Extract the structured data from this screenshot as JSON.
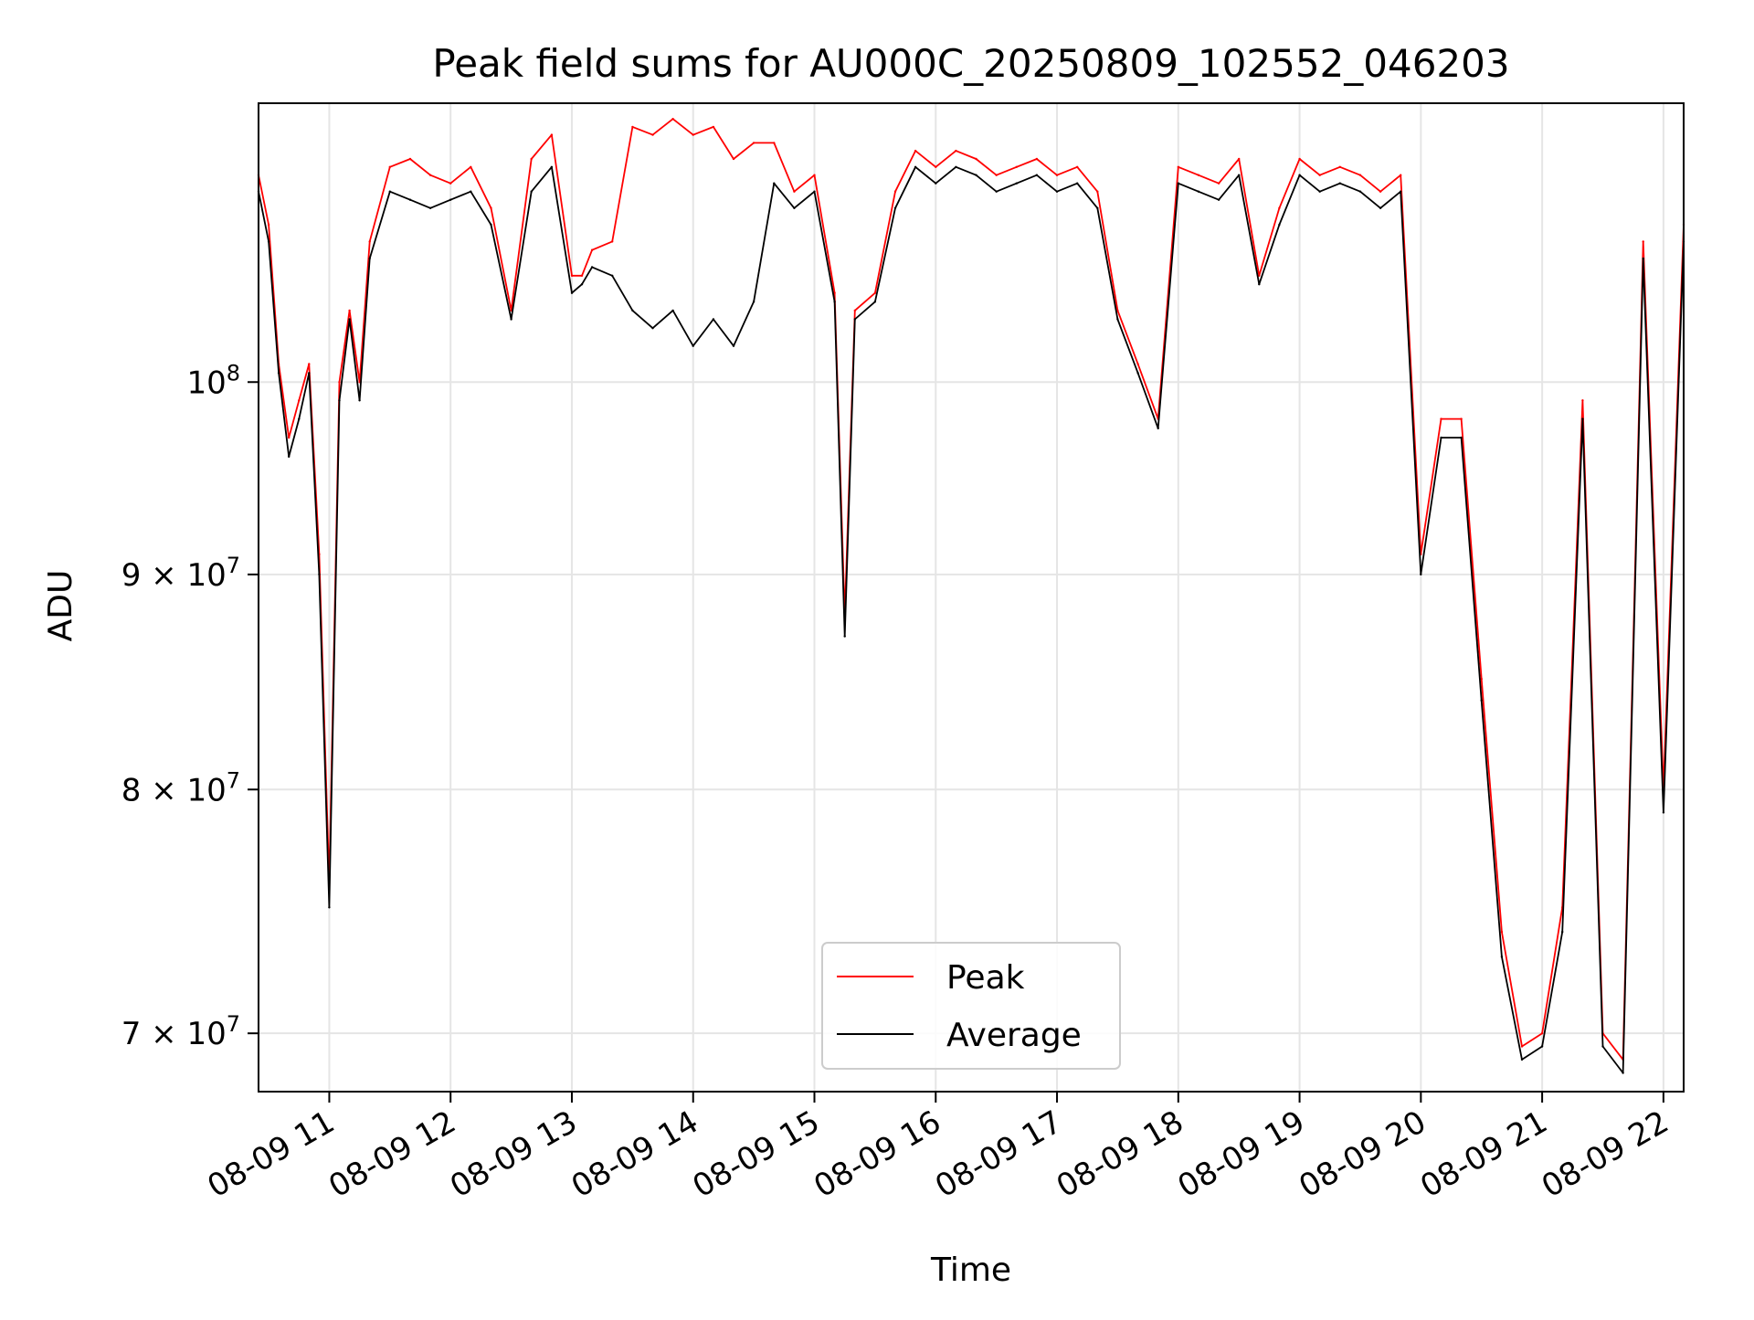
{
  "chart_data": {
    "type": "line",
    "title": "Peak field sums for AU000C_20250809_102552_046203",
    "xlabel": "Time",
    "ylabel": "ADU",
    "yscale": "log",
    "xlim": [
      "2025-08-09 10:25",
      "2025-08-09 22:10"
    ],
    "ylim": [
      67800000,
      116500000
    ],
    "grid": true,
    "legend_position": "lower center",
    "x_ticks": [
      "08-09 11",
      "08-09 12",
      "08-09 13",
      "08-09 14",
      "08-09 15",
      "08-09 16",
      "08-09 17",
      "08-09 18",
      "08-09 19",
      "08-09 20",
      "08-09 21",
      "08-09 22"
    ],
    "y_ticks": [
      {
        "value": 70000000,
        "mantissa": "7",
        "base": "10",
        "exp": "7"
      },
      {
        "value": 80000000,
        "mantissa": "8",
        "base": "10",
        "exp": "7"
      },
      {
        "value": 90000000,
        "mantissa": "9",
        "base": "10",
        "exp": "7"
      },
      {
        "value": 100000000,
        "mantissa": "",
        "base": "10",
        "exp": "8"
      }
    ],
    "x": [
      "10:25",
      "10:30",
      "10:35",
      "10:40",
      "10:45",
      "10:50",
      "10:55",
      "11:00",
      "11:05",
      "11:10",
      "11:15",
      "11:20",
      "11:30",
      "11:40",
      "11:50",
      "12:00",
      "12:10",
      "12:20",
      "12:30",
      "12:40",
      "12:50",
      "13:00",
      "13:05",
      "13:10",
      "13:20",
      "13:30",
      "13:40",
      "13:50",
      "14:00",
      "14:10",
      "14:20",
      "14:30",
      "14:40",
      "14:50",
      "15:00",
      "15:10",
      "15:15",
      "15:20",
      "15:30",
      "15:40",
      "15:50",
      "16:00",
      "16:10",
      "16:20",
      "16:30",
      "16:40",
      "16:50",
      "17:00",
      "17:10",
      "17:20",
      "17:30",
      "17:40",
      "17:50",
      "18:00",
      "18:10",
      "18:20",
      "18:30",
      "18:40",
      "18:50",
      "19:00",
      "19:10",
      "19:20",
      "19:30",
      "19:40",
      "19:50",
      "20:00",
      "20:10",
      "20:20",
      "20:30",
      "20:40",
      "20:50",
      "21:00",
      "21:10",
      "21:20",
      "21:30",
      "21:40",
      "21:50",
      "22:00",
      "22:10"
    ],
    "series": [
      {
        "name": "Peak",
        "color": "#ff0000",
        "values": [
          112000000,
          109000000,
          101000000,
          97000000,
          99000000,
          101000000,
          91000000,
          76000000,
          100000000,
          104000000,
          100000000,
          108000000,
          112500000,
          113000000,
          112000000,
          111500000,
          112500000,
          110000000,
          104000000,
          113000000,
          114500000,
          106000000,
          106000000,
          107500000,
          108000000,
          115000000,
          114500000,
          115500000,
          114500000,
          115000000,
          113000000,
          114000000,
          114000000,
          111000000,
          112000000,
          105000000,
          88000000,
          104000000,
          105000000,
          111000000,
          113500000,
          112500000,
          113500000,
          113000000,
          112000000,
          112500000,
          113000000,
          112000000,
          112500000,
          111000000,
          104000000,
          101000000,
          98000000,
          112500000,
          112000000,
          111500000,
          113000000,
          106000000,
          110000000,
          113000000,
          112000000,
          112500000,
          112000000,
          111000000,
          112000000,
          91000000,
          98000000,
          98000000,
          85000000,
          74000000,
          69500000,
          70000000,
          75000000,
          99000000,
          70000000,
          69000000,
          108000000,
          80000000,
          109000000
        ]
      },
      {
        "name": "Average",
        "color": "#000000",
        "values": [
          111000000,
          108000000,
          100500000,
          96000000,
          98000000,
          100500000,
          90000000,
          75000000,
          99000000,
          103500000,
          99000000,
          107000000,
          111000000,
          110500000,
          110000000,
          110500000,
          111000000,
          109000000,
          103500000,
          111000000,
          112500000,
          105000000,
          105500000,
          106500000,
          106000000,
          104000000,
          103000000,
          104000000,
          102000000,
          103500000,
          102000000,
          104500000,
          111500000,
          110000000,
          111000000,
          104500000,
          87000000,
          103500000,
          104500000,
          110000000,
          112500000,
          111500000,
          112500000,
          112000000,
          111000000,
          111500000,
          112000000,
          111000000,
          111500000,
          110000000,
          103500000,
          100500000,
          97500000,
          111500000,
          111000000,
          110500000,
          112000000,
          105500000,
          109000000,
          112000000,
          111000000,
          111500000,
          111000000,
          110000000,
          111000000,
          90000000,
          97000000,
          97000000,
          84000000,
          73000000,
          69000000,
          69500000,
          74000000,
          98000000,
          69500000,
          68500000,
          107000000,
          79000000,
          108000000
        ]
      }
    ]
  }
}
